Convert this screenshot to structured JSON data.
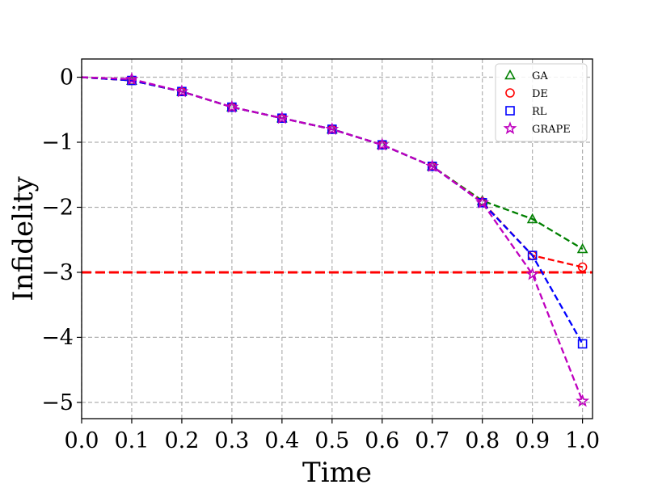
{
  "chart_data": {
    "type": "line",
    "xlabel": "Time",
    "ylabel": "Infidelity",
    "xlim": [
      0.0,
      1.02
    ],
    "ylim": [
      -5.25,
      0.28
    ],
    "xticks": [
      0.0,
      0.1,
      0.2,
      0.3,
      0.4,
      0.5,
      0.6,
      0.7,
      0.8,
      0.9,
      1.0
    ],
    "xtick_labels": [
      "0.0",
      "0.1",
      "0.2",
      "0.3",
      "0.4",
      "0.5",
      "0.6",
      "0.7",
      "0.8",
      "0.9",
      "1.0"
    ],
    "yticks": [
      0,
      -1,
      -2,
      -3,
      -4,
      -5
    ],
    "ytick_labels": [
      "0",
      "−1",
      "−2",
      "−3",
      "−4",
      "−5"
    ],
    "grid": true,
    "legend_position": "top-right",
    "x": [
      0.0,
      0.1,
      0.2,
      0.3,
      0.4,
      0.5,
      0.6,
      0.7,
      0.8,
      0.9,
      1.0
    ],
    "series": [
      {
        "name": "GA",
        "color": "#008000",
        "marker": "triangle",
        "values": [
          0.0,
          -0.05,
          -0.22,
          -0.46,
          -0.63,
          -0.8,
          -1.04,
          -1.37,
          -1.9,
          -2.18,
          -2.64
        ]
      },
      {
        "name": "DE",
        "color": "#ff0000",
        "marker": "circle",
        "values": [
          0.0,
          -0.05,
          -0.22,
          -0.46,
          -0.63,
          -0.8,
          -1.04,
          -1.37,
          -1.92,
          -2.74,
          -2.92
        ]
      },
      {
        "name": "RL",
        "color": "#0000ff",
        "marker": "square",
        "values": [
          0.0,
          -0.05,
          -0.22,
          -0.46,
          -0.63,
          -0.8,
          -1.04,
          -1.37,
          -1.93,
          -2.74,
          -4.1
        ]
      },
      {
        "name": "GRAPE",
        "color": "#bf00bf",
        "marker": "star",
        "values": [
          0.0,
          -0.03,
          -0.22,
          -0.46,
          -0.63,
          -0.8,
          -1.04,
          -1.37,
          -1.93,
          -3.03,
          -4.98
        ]
      }
    ],
    "threshold_line": {
      "y": -3,
      "color": "#ff0000",
      "style": "dashed"
    }
  }
}
